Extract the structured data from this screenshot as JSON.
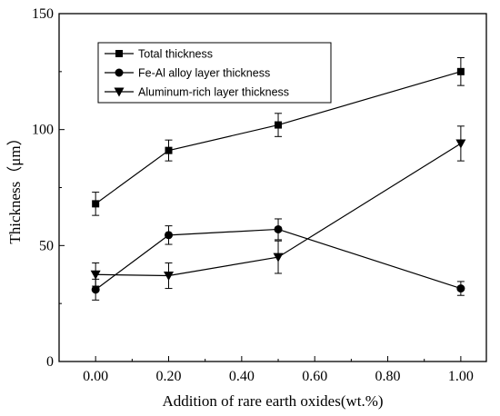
{
  "chart_data": {
    "type": "line",
    "title": "",
    "xlabel": "Addition of rare earth oxides(wt.%)",
    "ylabel": "Thickness（μm）",
    "xlim": [
      -0.1,
      1.07
    ],
    "ylim": [
      0,
      150
    ],
    "xticks": [
      0.0,
      0.2,
      0.4,
      0.6,
      0.8,
      1.0
    ],
    "xtick_labels": [
      "0.00",
      "0.20",
      "0.40",
      "0.60",
      "0.80",
      "1.00"
    ],
    "yticks": [
      0,
      50,
      100,
      150
    ],
    "ytick_labels": [
      "0",
      "50",
      "100",
      "150"
    ],
    "grid": false,
    "legend_position": "top-left",
    "x": [
      0.0,
      0.2,
      0.5,
      1.0
    ],
    "series": [
      {
        "name": "Total thickness",
        "marker": "square",
        "values": [
          68,
          91,
          102,
          125
        ],
        "errors": [
          5,
          4.5,
          5,
          6
        ]
      },
      {
        "name": "Fe-Al alloy layer thickness",
        "marker": "circle",
        "values": [
          31,
          54.5,
          57,
          31.5
        ],
        "errors": [
          4.5,
          4,
          4.5,
          3
        ]
      },
      {
        "name": "Aluminum-rich layer thickness",
        "marker": "triangle-down",
        "values": [
          37.5,
          37,
          45,
          94
        ],
        "errors": [
          5,
          5.5,
          7,
          7.5
        ]
      }
    ]
  }
}
